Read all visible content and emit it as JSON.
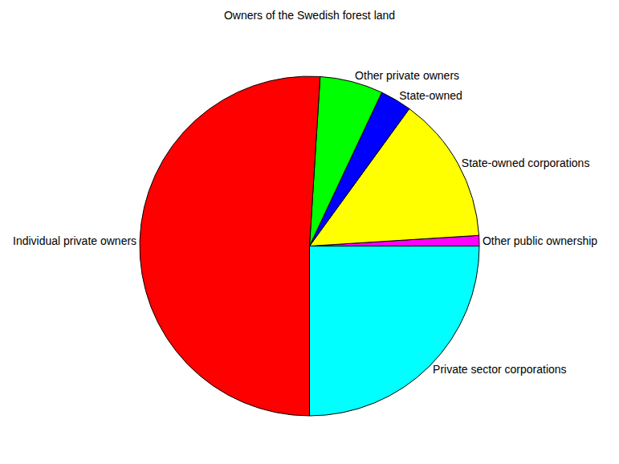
{
  "chart_data": {
    "type": "pie",
    "title": "Owners of the Swedish forest land",
    "categories": [
      "Private sector corporations",
      "Other public ownership",
      "State-owned corporations",
      "State-owned",
      "Other private owners",
      "Individual private owners"
    ],
    "values": [
      25,
      1,
      14,
      3,
      6,
      51
    ],
    "colors": [
      "#00FFFF",
      "#FF00FF",
      "#FFFF00",
      "#0000FF",
      "#00FF00",
      "#FF0000"
    ]
  }
}
